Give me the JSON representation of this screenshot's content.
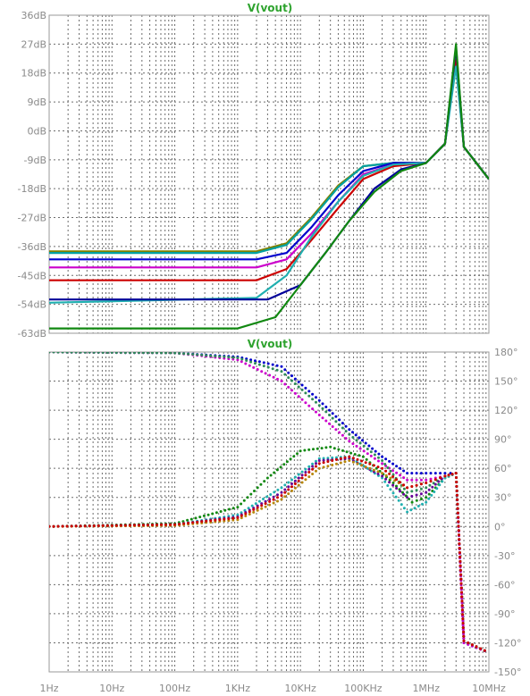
{
  "chart_data": [
    {
      "type": "line",
      "title": "V(vout)",
      "x_scale": "log",
      "xlim": [
        1,
        10000000
      ],
      "ylim": [
        -63,
        36
      ],
      "y_unit": "dB",
      "x_tick_labels": [],
      "y_tick_labels": [
        "36dB",
        "27dB",
        "18dB",
        "9dB",
        "0dB",
        "-9dB",
        "-18dB",
        "-27dB",
        "-36dB",
        "-45dB",
        "-54dB",
        "-63dB"
      ],
      "grid": true,
      "series": [
        {
          "color": "#808000",
          "values": [
            [
              1,
              -37.5
            ],
            [
              2000,
              -37.5
            ],
            [
              6000,
              -35
            ],
            [
              15000,
              -27
            ],
            [
              40000,
              -17
            ],
            [
              100000,
              -11
            ],
            [
              300000,
              -10
            ],
            [
              1000000,
              -10
            ],
            [
              2000000,
              -4
            ],
            [
              3000000,
              22
            ],
            [
              4000000,
              -5
            ],
            [
              10000000,
              -15
            ]
          ]
        },
        {
          "color": "#00a0a0",
          "values": [
            [
              1,
              -38
            ],
            [
              2000,
              -38
            ],
            [
              6000,
              -35.5
            ],
            [
              15000,
              -27.5
            ],
            [
              40000,
              -17.5
            ],
            [
              100000,
              -11
            ],
            [
              300000,
              -10
            ],
            [
              1000000,
              -10
            ],
            [
              2000000,
              -4
            ],
            [
              3000000,
              24
            ],
            [
              4000000,
              -5
            ],
            [
              10000000,
              -15
            ]
          ]
        },
        {
          "color": "#0000cc",
          "values": [
            [
              1,
              -40
            ],
            [
              2000,
              -40
            ],
            [
              6000,
              -38
            ],
            [
              15000,
              -30
            ],
            [
              40000,
              -20
            ],
            [
              100000,
              -12.5
            ],
            [
              300000,
              -10
            ],
            [
              1000000,
              -10
            ],
            [
              2000000,
              -4
            ],
            [
              3000000,
              25
            ],
            [
              4000000,
              -5
            ],
            [
              10000000,
              -15
            ]
          ]
        },
        {
          "color": "#cc00cc",
          "values": [
            [
              1,
              -42.5
            ],
            [
              2000,
              -42.5
            ],
            [
              6000,
              -40
            ],
            [
              15000,
              -32
            ],
            [
              40000,
              -22
            ],
            [
              100000,
              -13.5
            ],
            [
              300000,
              -10.5
            ],
            [
              1000000,
              -10
            ],
            [
              2000000,
              -4
            ],
            [
              3000000,
              25
            ],
            [
              4000000,
              -5
            ],
            [
              10000000,
              -15
            ]
          ]
        },
        {
          "color": "#cc0000",
          "values": [
            [
              1,
              -46.5
            ],
            [
              2000,
              -46.5
            ],
            [
              6000,
              -43
            ],
            [
              15000,
              -34
            ],
            [
              40000,
              -24
            ],
            [
              100000,
              -15
            ],
            [
              300000,
              -11
            ],
            [
              1000000,
              -10
            ],
            [
              2000000,
              -4
            ],
            [
              3000000,
              22
            ],
            [
              4000000,
              -5
            ],
            [
              10000000,
              -15
            ]
          ]
        },
        {
          "color": "#20b0b0",
          "values": [
            [
              1,
              -53.5
            ],
            [
              2000,
              -52
            ],
            [
              6000,
              -45
            ],
            [
              15000,
              -33
            ],
            [
              40000,
              -22
            ],
            [
              100000,
              -14
            ],
            [
              300000,
              -10.5
            ],
            [
              1000000,
              -10
            ],
            [
              2000000,
              -4
            ],
            [
              3000000,
              20
            ],
            [
              4000000,
              -5
            ],
            [
              10000000,
              -15
            ]
          ]
        },
        {
          "color": "#000099",
          "values": [
            [
              1,
              -52.5
            ],
            [
              3000,
              -52.5
            ],
            [
              10000,
              -48
            ],
            [
              25000,
              -38
            ],
            [
              60000,
              -28
            ],
            [
              150000,
              -18
            ],
            [
              400000,
              -12
            ],
            [
              1000000,
              -10
            ],
            [
              2000000,
              -4
            ],
            [
              3000000,
              26
            ],
            [
              4000000,
              -5
            ],
            [
              10000000,
              -15
            ]
          ]
        },
        {
          "color": "#118811",
          "values": [
            [
              1,
              -61.5
            ],
            [
              1000,
              -61.5
            ],
            [
              4000,
              -58
            ],
            [
              10000,
              -48
            ],
            [
              25000,
              -38
            ],
            [
              60000,
              -28
            ],
            [
              150000,
              -19
            ],
            [
              400000,
              -12.5
            ],
            [
              1000000,
              -10
            ],
            [
              2000000,
              -4
            ],
            [
              3000000,
              27
            ],
            [
              4000000,
              -5
            ],
            [
              10000000,
              -15
            ]
          ]
        }
      ]
    },
    {
      "type": "line",
      "title": "V(vout)",
      "x_scale": "log",
      "xlim": [
        1,
        10000000
      ],
      "ylim": [
        -150,
        180
      ],
      "y_unit": "°",
      "x_tick_labels": [
        "1Hz",
        "10Hz",
        "100Hz",
        "1KHz",
        "10KHz",
        "100KHz",
        "1MHz",
        "10MHz"
      ],
      "y_tick_labels": [
        "180°",
        "150°",
        "120°",
        "90°",
        "60°",
        "30°",
        "0°",
        "-30°",
        "-60°",
        "-90°",
        "-120°",
        "-150°"
      ],
      "grid": true,
      "series": [
        {
          "color": "#0000cc",
          "values": [
            [
              1,
              180
            ],
            [
              100,
              179
            ],
            [
              1000,
              175
            ],
            [
              5000,
              165
            ],
            [
              20000,
              130
            ],
            [
              60000,
              100
            ],
            [
              200000,
              72
            ],
            [
              500000,
              55
            ],
            [
              1000000,
              55
            ],
            [
              2000000,
              55
            ],
            [
              3000000,
              55
            ],
            [
              4000000,
              -120
            ],
            [
              10000000,
              -130
            ]
          ]
        },
        {
          "color": "#cc00cc",
          "values": [
            [
              1,
              180
            ],
            [
              100,
              179
            ],
            [
              1000,
              172
            ],
            [
              5000,
              150
            ],
            [
              20000,
              115
            ],
            [
              60000,
              88
            ],
            [
              200000,
              65
            ],
            [
              500000,
              48
            ],
            [
              1000000,
              48
            ],
            [
              2000000,
              52
            ],
            [
              3000000,
              55
            ],
            [
              4000000,
              -120
            ],
            [
              10000000,
              -130
            ]
          ]
        },
        {
          "color": "#2e8b57",
          "values": [
            [
              1,
              180
            ],
            [
              100,
              179
            ],
            [
              1000,
              174
            ],
            [
              5000,
              160
            ],
            [
              20000,
              125
            ],
            [
              60000,
              95
            ],
            [
              200000,
              68
            ],
            [
              500000,
              35
            ],
            [
              1000000,
              40
            ],
            [
              2000000,
              52
            ],
            [
              3000000,
              55
            ],
            [
              4000000,
              -118
            ],
            [
              10000000,
              -130
            ]
          ]
        },
        {
          "color": "#118811",
          "values": [
            [
              1,
              0
            ],
            [
              100,
              3
            ],
            [
              1000,
              20
            ],
            [
              3000,
              50
            ],
            [
              10000,
              78
            ],
            [
              30000,
              82
            ],
            [
              100000,
              72
            ],
            [
              300000,
              45
            ],
            [
              600000,
              25
            ],
            [
              1000000,
              30
            ],
            [
              2000000,
              50
            ],
            [
              3000000,
              55
            ],
            [
              4000000,
              -118
            ],
            [
              10000000,
              -130
            ]
          ]
        },
        {
          "color": "#20b0b0",
          "values": [
            [
              1,
              0
            ],
            [
              100,
              2
            ],
            [
              1000,
              12
            ],
            [
              5000,
              40
            ],
            [
              20000,
              70
            ],
            [
              60000,
              72
            ],
            [
              200000,
              50
            ],
            [
              500000,
              15
            ],
            [
              1000000,
              25
            ],
            [
              2000000,
              50
            ],
            [
              3000000,
              55
            ],
            [
              4000000,
              -118
            ],
            [
              10000000,
              -130
            ]
          ]
        },
        {
          "color": "#660099",
          "values": [
            [
              1,
              0
            ],
            [
              100,
              2
            ],
            [
              1000,
              10
            ],
            [
              5000,
              35
            ],
            [
              20000,
              68
            ],
            [
              60000,
              70
            ],
            [
              200000,
              52
            ],
            [
              500000,
              30
            ],
            [
              1000000,
              35
            ],
            [
              2000000,
              52
            ],
            [
              3000000,
              55
            ],
            [
              4000000,
              -118
            ],
            [
              10000000,
              -130
            ]
          ]
        },
        {
          "color": "#b8860b",
          "values": [
            [
              1,
              0
            ],
            [
              100,
              1
            ],
            [
              1000,
              7
            ],
            [
              5000,
              28
            ],
            [
              20000,
              60
            ],
            [
              60000,
              68
            ],
            [
              200000,
              55
            ],
            [
              500000,
              40
            ],
            [
              1000000,
              45
            ],
            [
              2000000,
              52
            ],
            [
              3000000,
              55
            ],
            [
              4000000,
              -118
            ],
            [
              10000000,
              -130
            ]
          ]
        },
        {
          "color": "#cc0000",
          "values": [
            [
              1,
              0
            ],
            [
              100,
              2
            ],
            [
              1000,
              9
            ],
            [
              5000,
              32
            ],
            [
              20000,
              65
            ],
            [
              60000,
              72
            ],
            [
              200000,
              60
            ],
            [
              500000,
              40
            ],
            [
              1000000,
              45
            ],
            [
              2000000,
              52
            ],
            [
              3000000,
              55
            ],
            [
              4000000,
              -118
            ],
            [
              10000000,
              -130
            ]
          ]
        }
      ]
    }
  ]
}
